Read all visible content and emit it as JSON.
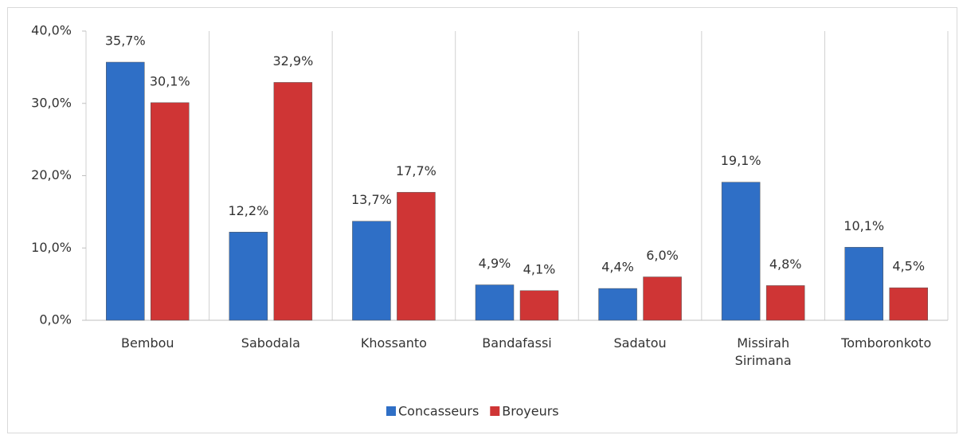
{
  "chart_data": {
    "type": "bar",
    "categories": [
      "Bembou",
      "Sabodala",
      "Khossanto",
      "Bandafassi",
      "Sadatou",
      "Missirah Sirimana",
      "Tomboronkoto"
    ],
    "series": [
      {
        "name": "Concasseurs",
        "color": "#2f6fc6",
        "values": [
          35.7,
          12.2,
          13.7,
          4.9,
          4.4,
          19.1,
          10.1
        ],
        "value_labels": [
          "35,7%",
          "12,2%",
          "13,7%",
          "4,9%",
          "4,4%",
          "19,1%",
          "10,1%"
        ]
      },
      {
        "name": "Broyeurs",
        "color": "#cf3535",
        "values": [
          30.1,
          32.9,
          17.7,
          4.1,
          6.0,
          4.8,
          4.5
        ],
        "value_labels": [
          "30,1%",
          "32,9%",
          "17,7%",
          "4,1%",
          "6,0%",
          "4,8%",
          "4,5%"
        ]
      }
    ],
    "ylim": [
      0,
      40
    ],
    "yticks": [
      {
        "value": 0,
        "label": "0,0%"
      },
      {
        "value": 10,
        "label": "10,0%"
      },
      {
        "value": 20,
        "label": "20,0%"
      },
      {
        "value": 30,
        "label": "30,0%"
      },
      {
        "value": 40,
        "label": "40,0%"
      }
    ],
    "legend": "bottom"
  }
}
